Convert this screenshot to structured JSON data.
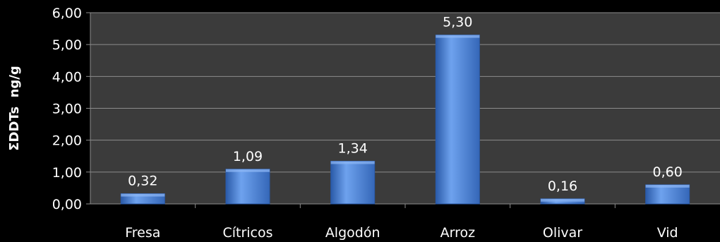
{
  "chart_data": {
    "type": "bar",
    "title": "",
    "xlabel": "",
    "ylabel": "ΣDDTs  ng/g",
    "categories": [
      "Fresa",
      "Cítricos",
      "Algodón",
      "Arroz",
      "Olivar",
      "Vid"
    ],
    "values": [
      0.32,
      1.09,
      1.34,
      5.3,
      0.16,
      0.6
    ],
    "value_labels": [
      "0,32",
      "1,09",
      "1,34",
      "5,30",
      "0,16",
      "0,60"
    ],
    "ylim": [
      0,
      6
    ],
    "yticks": [
      0,
      1,
      2,
      3,
      4,
      5,
      6
    ],
    "ytick_labels": [
      "0,00",
      "1,00",
      "2,00",
      "3,00",
      "4,00",
      "5,00",
      "6,00"
    ],
    "grid": true,
    "legend": "none",
    "colors": {
      "background": "#000000",
      "plot_area": "#3b3b3b",
      "gridline": "#8c8c8c",
      "bar_fill": "#4f86d6",
      "bar_dark": "#2a5aa8",
      "text": "#ffffff"
    }
  }
}
